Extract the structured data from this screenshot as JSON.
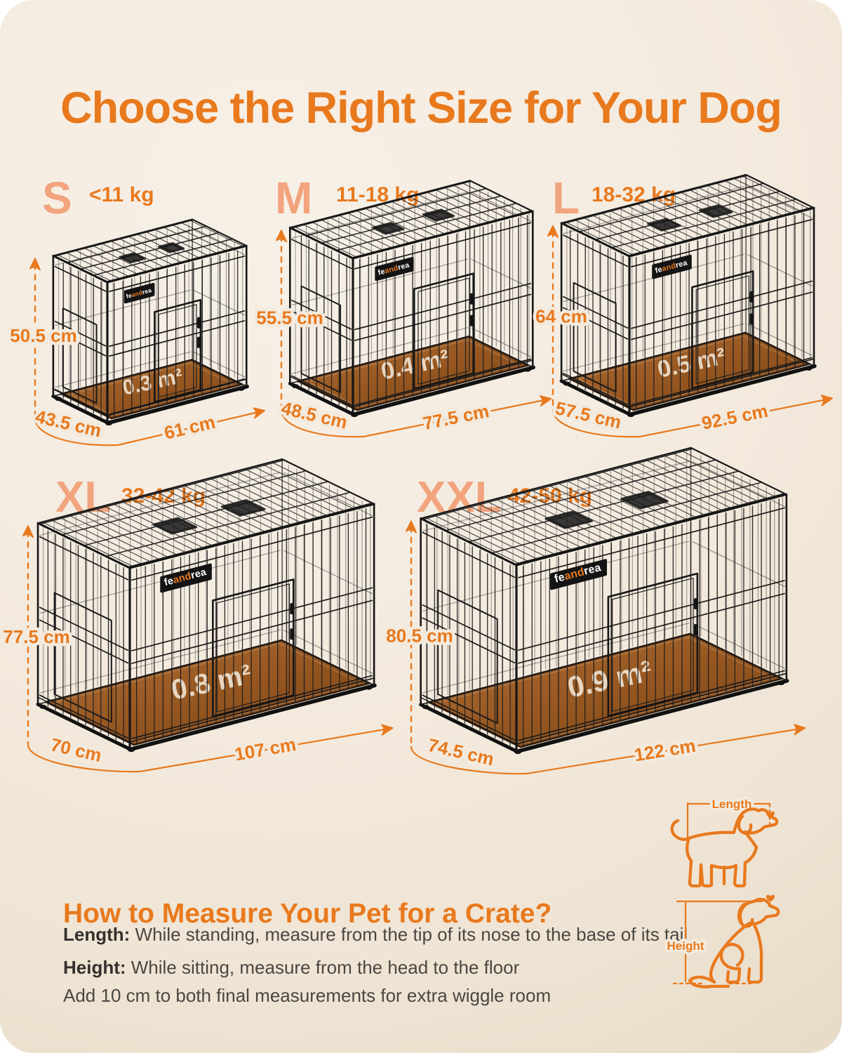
{
  "page": {
    "title": "Choose the Right Size for Your Dog"
  },
  "crates": [
    {
      "size": "S",
      "weight": "<11 kg",
      "height": "50.5 cm",
      "depth": "43.5 cm",
      "length": "61 cm",
      "area": "0.3 m²"
    },
    {
      "size": "M",
      "weight": "11-18 kg",
      "height": "55.5 cm",
      "depth": "48.5 cm",
      "length": "77.5 cm",
      "area": "0.4 m²"
    },
    {
      "size": "L",
      "weight": "18-32 kg",
      "height": "64 cm",
      "depth": "57.5 cm",
      "length": "92.5 cm",
      "area": "0.5 m²"
    },
    {
      "size": "XL",
      "weight": "32-42 kg",
      "height": "77.5 cm",
      "depth": "70 cm",
      "length": "107 cm",
      "area": "0.8 m²"
    },
    {
      "size": "XXL",
      "weight": "42-50 kg",
      "height": "80.5 cm",
      "depth": "74.5 cm",
      "length": "122 cm",
      "area": "0.9 m²"
    }
  ],
  "brand": {
    "fe": "fe",
    "and": "and",
    "rea": "rea"
  },
  "measure_guide": {
    "heading": "How to Measure Your Pet for a Crate?",
    "length_label": "Length:",
    "length_text": " While standing, measure from the tip of its nose to the base of its tail",
    "height_label": "Height:",
    "height_text": " While sitting, measure from the head to the floor",
    "note": "Add 10 cm to both final measurements for extra wiggle room",
    "diagram_length_label": "Length",
    "diagram_height_label": "Height"
  },
  "colors": {
    "accent": "#E8791D",
    "accent_light": "#F2A47E",
    "tray": "#9A5A27",
    "wire": "#1f1f1f",
    "background": "#F3EADD"
  }
}
